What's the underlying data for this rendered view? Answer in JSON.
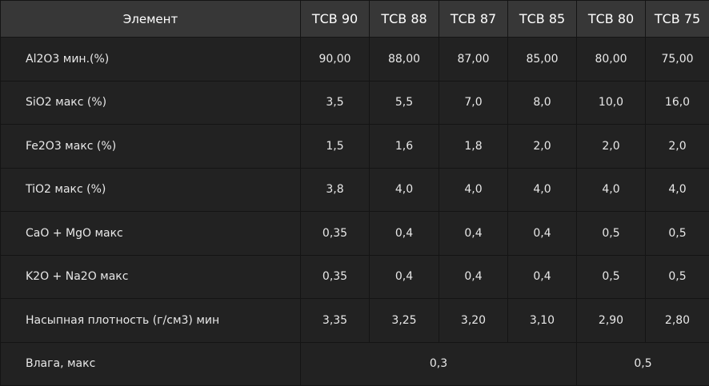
{
  "table": {
    "header_element": "Элемент",
    "columns": [
      "ТСВ 90",
      "ТСВ 88",
      "ТСВ 87",
      "ТСВ 85",
      "ТСВ 80",
      "ТСВ 75"
    ],
    "rows": [
      {
        "label": "Al2O3 мин.(%)",
        "values": [
          "90,00",
          "88,00",
          "87,00",
          "85,00",
          "80,00",
          "75,00"
        ]
      },
      {
        "label": "SiO2 макс (%)",
        "values": [
          "3,5",
          "5,5",
          "7,0",
          "8,0",
          "10,0",
          "16,0"
        ]
      },
      {
        "label": "Fe2O3 макс (%)",
        "values": [
          "1,5",
          "1,6",
          "1,8",
          "2,0",
          "2,0",
          "2,0"
        ]
      },
      {
        "label": "TiO2 макс (%)",
        "values": [
          "3,8",
          "4,0",
          "4,0",
          "4,0",
          "4,0",
          "4,0"
        ]
      },
      {
        "label": "CaO + MgO макс",
        "values": [
          "0,35",
          "0,4",
          "0,4",
          "0,4",
          "0,5",
          "0,5"
        ]
      },
      {
        "label": "K2O + Na2O макс",
        "values": [
          "0,35",
          "0,4",
          "0,4",
          "0,4",
          "0,5",
          "0,5"
        ]
      },
      {
        "label": "Насыпная плотность (г/см3) мин",
        "values": [
          "3,35",
          "3,25",
          "3,20",
          "3,10",
          "2,90",
          "2,80"
        ]
      }
    ],
    "moisture": {
      "label": "Влага, макс",
      "value_group_1": "0,3",
      "value_group_2": "0,5"
    }
  }
}
